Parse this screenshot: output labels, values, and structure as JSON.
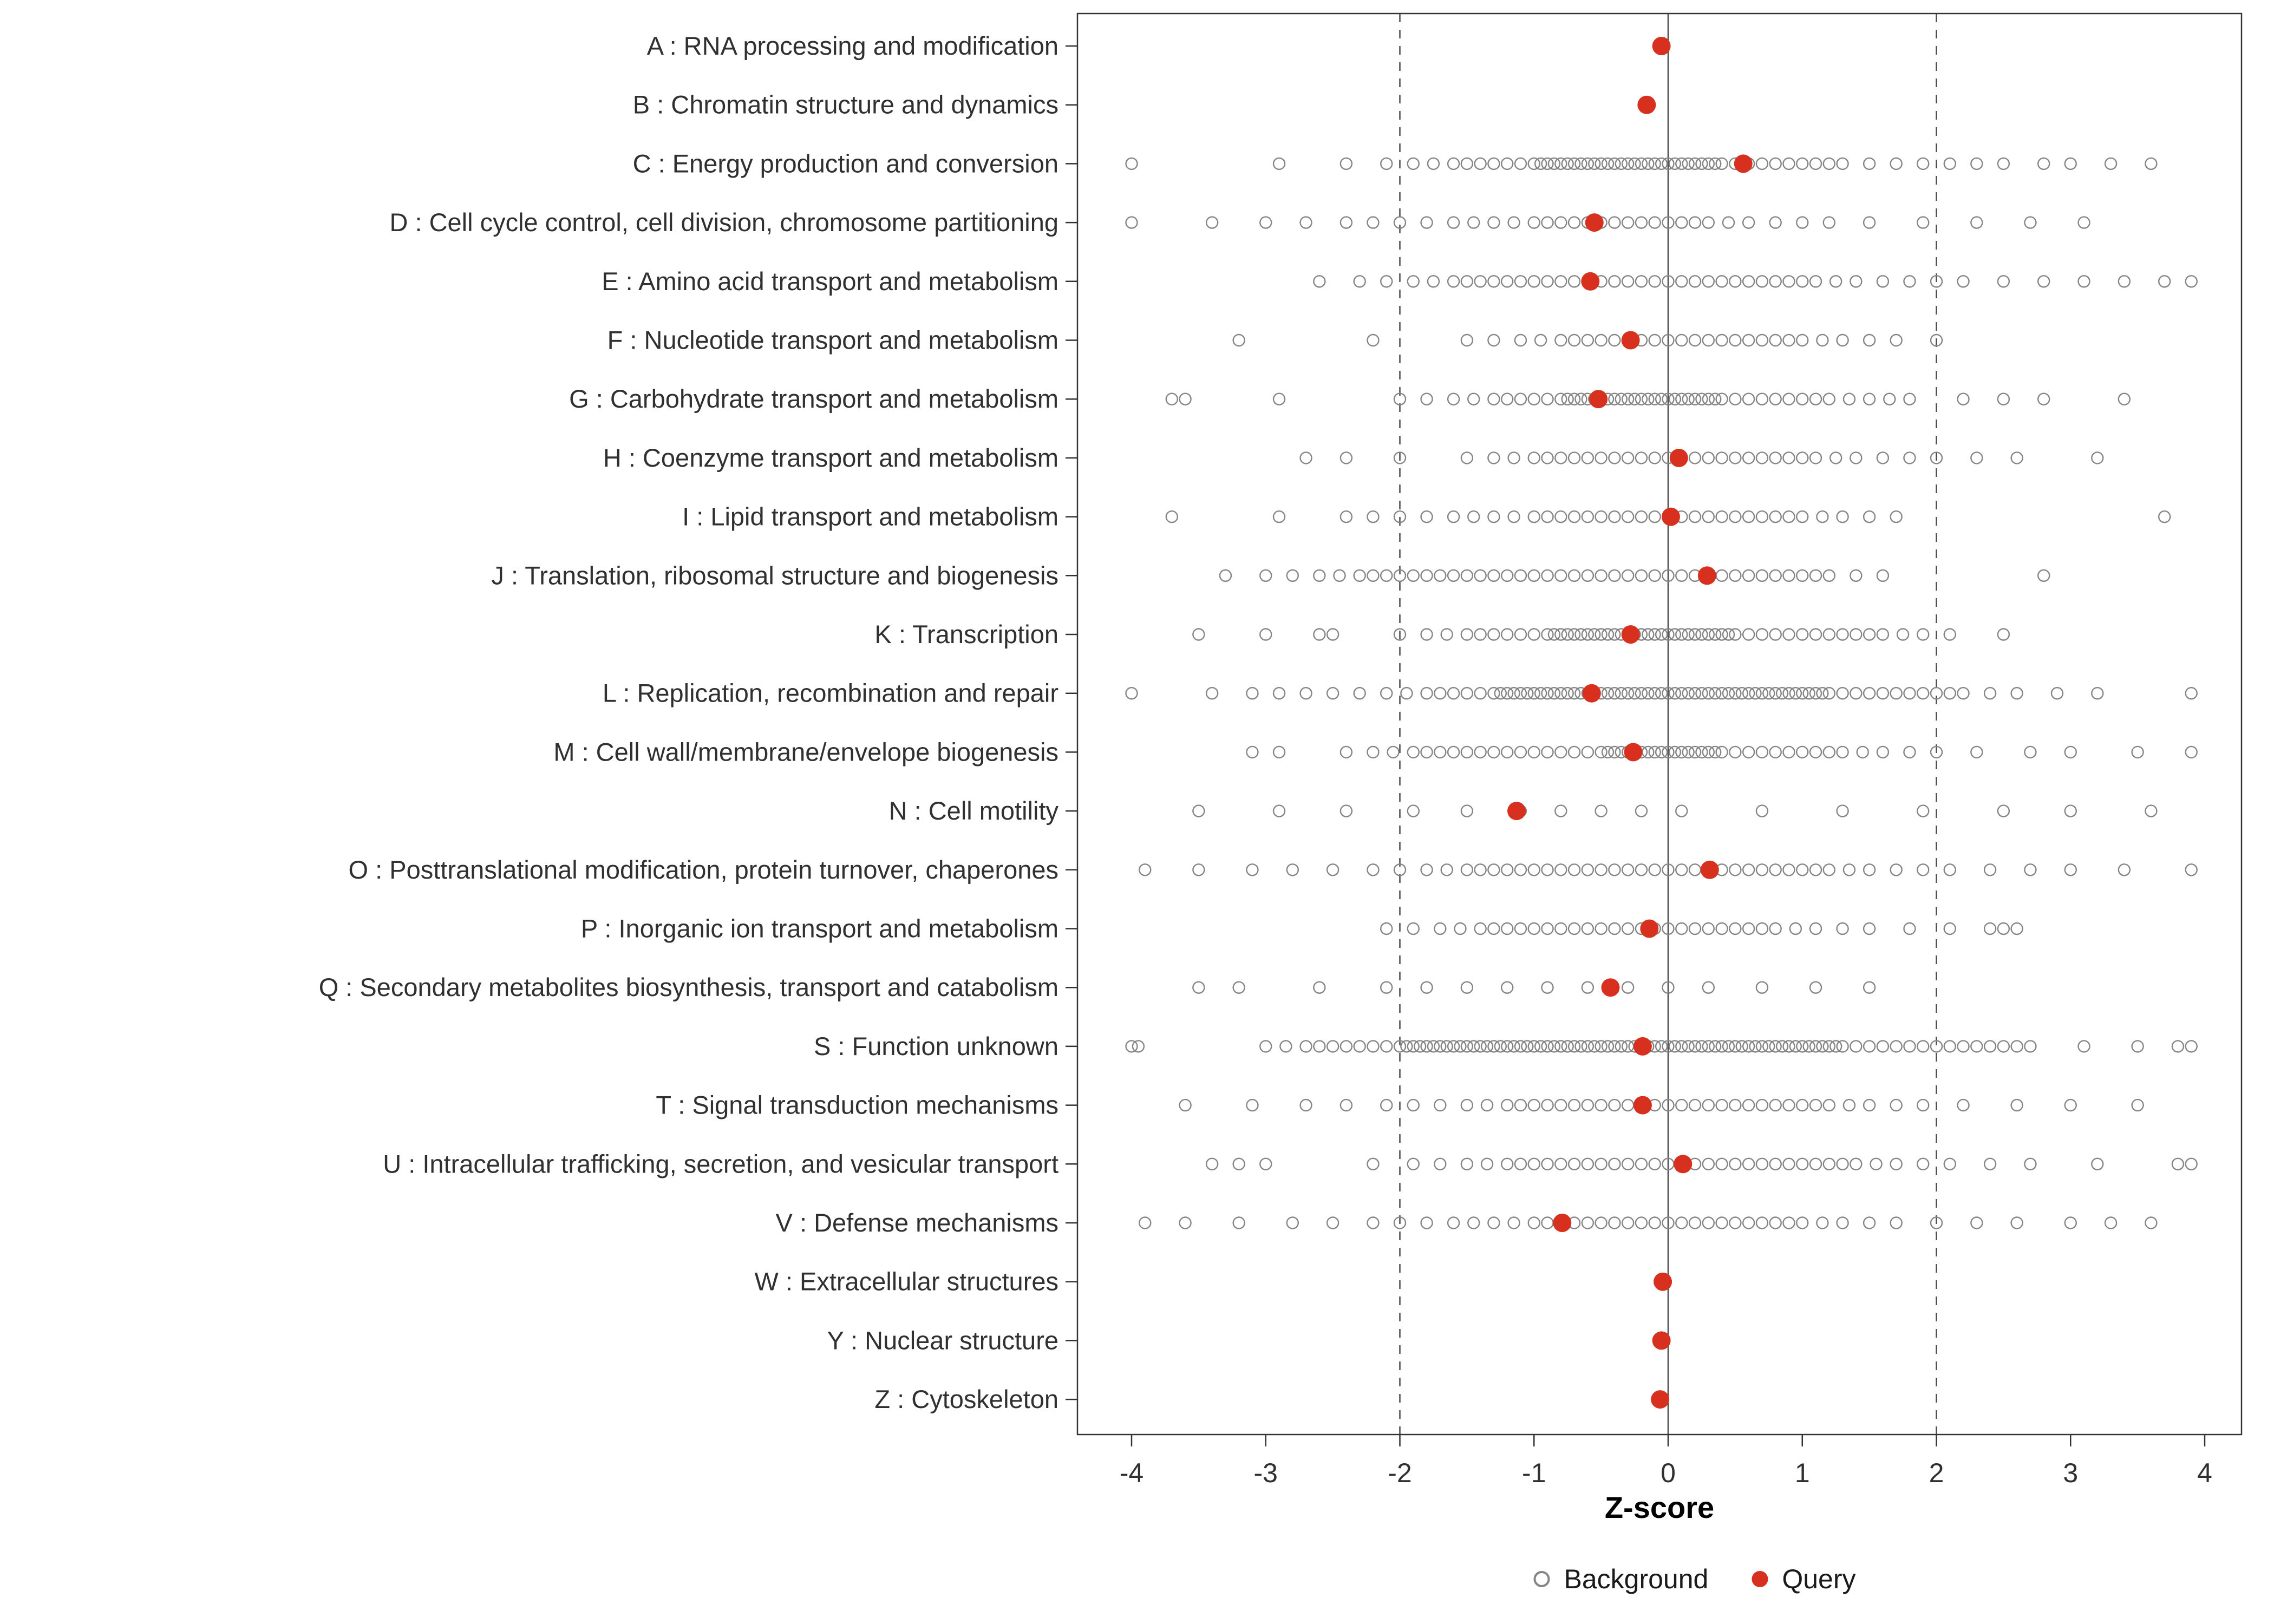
{
  "chart_data": {
    "type": "scatter",
    "title": "",
    "xlabel": "Z-score",
    "ylabel": "",
    "xlim": [
      -4.4,
      4.3
    ],
    "x_ticks": [
      -4,
      -3,
      -2,
      -1,
      0,
      1,
      2,
      3,
      4
    ],
    "reference_lines": {
      "solid": [
        0
      ],
      "dashed": [
        -2,
        2
      ]
    },
    "legend": [
      {
        "label": "Background",
        "marker": "open-circle"
      },
      {
        "label": "Query",
        "marker": "filled-circle"
      }
    ],
    "colors": {
      "query": "#D7301F",
      "background_stroke": "#858585",
      "reference_line": "#4a4a4a",
      "axis_text": "#303030",
      "panel_border": "#333333"
    },
    "categories": [
      {
        "key": "A",
        "label": "A : RNA processing and modification",
        "query": -0.05,
        "background": []
      },
      {
        "key": "B",
        "label": "B : Chromatin structure and dynamics",
        "query": -0.16,
        "background": []
      },
      {
        "key": "C",
        "label": "C : Energy production and conversion",
        "query": 0.56,
        "background": [
          -4.0,
          -2.9,
          -2.4,
          -2.1,
          -1.9,
          -1.75,
          -1.6,
          -1.5,
          -1.4,
          -1.3,
          -1.2,
          -1.1,
          -1.0,
          -0.95,
          -0.9,
          -0.85,
          -0.8,
          -0.75,
          -0.7,
          -0.65,
          -0.6,
          -0.55,
          -0.5,
          -0.45,
          -0.4,
          -0.35,
          -0.3,
          -0.25,
          -0.2,
          -0.15,
          -0.1,
          -0.05,
          0.0,
          0.05,
          0.1,
          0.15,
          0.2,
          0.25,
          0.3,
          0.35,
          0.4,
          0.5,
          0.6,
          0.7,
          0.8,
          0.9,
          1.0,
          1.1,
          1.2,
          1.3,
          1.5,
          1.7,
          1.9,
          2.1,
          2.3,
          2.5,
          2.8,
          3.0,
          3.3,
          3.6
        ]
      },
      {
        "key": "D",
        "label": "D : Cell cycle control, cell division, chromosome partitioning",
        "query": -0.55,
        "background": [
          -4.0,
          -3.4,
          -3.0,
          -2.7,
          -2.4,
          -2.2,
          -2.0,
          -1.8,
          -1.6,
          -1.45,
          -1.3,
          -1.15,
          -1.0,
          -0.9,
          -0.8,
          -0.7,
          -0.6,
          -0.5,
          -0.4,
          -0.3,
          -0.2,
          -0.1,
          0.0,
          0.1,
          0.2,
          0.3,
          0.45,
          0.6,
          0.8,
          1.0,
          1.2,
          1.5,
          1.9,
          2.3,
          2.7,
          3.1
        ]
      },
      {
        "key": "E",
        "label": "E : Amino acid transport and metabolism",
        "query": -0.58,
        "background": [
          -2.6,
          -2.3,
          -2.1,
          -1.9,
          -1.75,
          -1.6,
          -1.5,
          -1.4,
          -1.3,
          -1.2,
          -1.1,
          -1.0,
          -0.9,
          -0.8,
          -0.7,
          -0.6,
          -0.5,
          -0.4,
          -0.3,
          -0.2,
          -0.1,
          0.0,
          0.1,
          0.2,
          0.3,
          0.4,
          0.5,
          0.6,
          0.7,
          0.8,
          0.9,
          1.0,
          1.1,
          1.25,
          1.4,
          1.6,
          1.8,
          2.0,
          2.2,
          2.5,
          2.8,
          3.1,
          3.4,
          3.7,
          3.9
        ]
      },
      {
        "key": "F",
        "label": "F : Nucleotide transport and metabolism",
        "query": -0.28,
        "background": [
          -3.2,
          -2.2,
          -1.5,
          -1.3,
          -1.1,
          -0.95,
          -0.8,
          -0.7,
          -0.6,
          -0.5,
          -0.4,
          -0.3,
          -0.2,
          -0.1,
          0.0,
          0.1,
          0.2,
          0.3,
          0.4,
          0.5,
          0.6,
          0.7,
          0.8,
          0.9,
          1.0,
          1.15,
          1.3,
          1.5,
          1.7,
          2.0
        ]
      },
      {
        "key": "G",
        "label": "G : Carbohydrate transport and metabolism",
        "query": -0.52,
        "background": [
          -3.7,
          -3.6,
          -2.9,
          -2.0,
          -1.8,
          -1.6,
          -1.45,
          -1.3,
          -1.2,
          -1.1,
          -1.0,
          -0.9,
          -0.8,
          -0.75,
          -0.7,
          -0.65,
          -0.6,
          -0.55,
          -0.5,
          -0.45,
          -0.4,
          -0.35,
          -0.3,
          -0.25,
          -0.2,
          -0.15,
          -0.1,
          -0.05,
          0.0,
          0.05,
          0.1,
          0.15,
          0.2,
          0.25,
          0.3,
          0.35,
          0.4,
          0.5,
          0.6,
          0.7,
          0.8,
          0.9,
          1.0,
          1.1,
          1.2,
          1.35,
          1.5,
          1.65,
          1.8,
          2.2,
          2.5,
          2.8,
          3.4
        ]
      },
      {
        "key": "H",
        "label": "H : Coenzyme transport and metabolism",
        "query": 0.08,
        "background": [
          -2.7,
          -2.4,
          -2.0,
          -1.5,
          -1.3,
          -1.15,
          -1.0,
          -0.9,
          -0.8,
          -0.7,
          -0.6,
          -0.5,
          -0.4,
          -0.3,
          -0.2,
          -0.1,
          0.0,
          0.1,
          0.2,
          0.3,
          0.4,
          0.5,
          0.6,
          0.7,
          0.8,
          0.9,
          1.0,
          1.1,
          1.25,
          1.4,
          1.6,
          1.8,
          2.0,
          2.3,
          2.6,
          3.2
        ]
      },
      {
        "key": "I",
        "label": "I : Lipid transport and metabolism",
        "query": 0.02,
        "background": [
          -3.7,
          -2.9,
          -2.4,
          -2.2,
          -2.0,
          -1.8,
          -1.6,
          -1.45,
          -1.3,
          -1.15,
          -1.0,
          -0.9,
          -0.8,
          -0.7,
          -0.6,
          -0.5,
          -0.4,
          -0.3,
          -0.2,
          -0.1,
          0.0,
          0.1,
          0.2,
          0.3,
          0.4,
          0.5,
          0.6,
          0.7,
          0.8,
          0.9,
          1.0,
          1.15,
          1.3,
          1.5,
          1.7,
          3.7
        ]
      },
      {
        "key": "J",
        "label": "J : Translation, ribosomal structure and biogenesis",
        "query": 0.29,
        "background": [
          -3.3,
          -3.0,
          -2.8,
          -2.6,
          -2.45,
          -2.3,
          -2.2,
          -2.1,
          -2.0,
          -1.9,
          -1.8,
          -1.7,
          -1.6,
          -1.5,
          -1.4,
          -1.3,
          -1.2,
          -1.1,
          -1.0,
          -0.9,
          -0.8,
          -0.7,
          -0.6,
          -0.5,
          -0.4,
          -0.3,
          -0.2,
          -0.1,
          0.0,
          0.1,
          0.2,
          0.3,
          0.4,
          0.5,
          0.6,
          0.7,
          0.8,
          0.9,
          1.0,
          1.1,
          1.2,
          1.4,
          1.6,
          2.8
        ]
      },
      {
        "key": "K",
        "label": "K : Transcription",
        "query": -0.28,
        "background": [
          -3.5,
          -3.0,
          -2.6,
          -2.5,
          -2.0,
          -1.8,
          -1.65,
          -1.5,
          -1.4,
          -1.3,
          -1.2,
          -1.1,
          -1.0,
          -0.9,
          -0.85,
          -0.8,
          -0.75,
          -0.7,
          -0.65,
          -0.6,
          -0.55,
          -0.5,
          -0.45,
          -0.4,
          -0.35,
          -0.3,
          -0.25,
          -0.2,
          -0.15,
          -0.1,
          -0.05,
          0.0,
          0.05,
          0.1,
          0.15,
          0.2,
          0.25,
          0.3,
          0.35,
          0.4,
          0.45,
          0.5,
          0.6,
          0.7,
          0.8,
          0.9,
          1.0,
          1.1,
          1.2,
          1.3,
          1.4,
          1.5,
          1.6,
          1.75,
          1.9,
          2.1,
          2.5
        ]
      },
      {
        "key": "L",
        "label": "L : Replication, recombination and repair",
        "query": -0.57,
        "background": [
          -4.0,
          -3.4,
          -3.1,
          -2.9,
          -2.7,
          -2.5,
          -2.3,
          -2.1,
          -1.95,
          -1.8,
          -1.7,
          -1.6,
          -1.5,
          -1.4,
          -1.3,
          -1.25,
          -1.2,
          -1.15,
          -1.1,
          -1.05,
          -1.0,
          -0.95,
          -0.9,
          -0.85,
          -0.8,
          -0.75,
          -0.7,
          -0.65,
          -0.6,
          -0.55,
          -0.5,
          -0.45,
          -0.4,
          -0.35,
          -0.3,
          -0.25,
          -0.2,
          -0.15,
          -0.1,
          -0.05,
          0.0,
          0.05,
          0.1,
          0.15,
          0.2,
          0.25,
          0.3,
          0.35,
          0.4,
          0.45,
          0.5,
          0.55,
          0.6,
          0.65,
          0.7,
          0.75,
          0.8,
          0.85,
          0.9,
          0.95,
          1.0,
          1.05,
          1.1,
          1.15,
          1.2,
          1.3,
          1.4,
          1.5,
          1.6,
          1.7,
          1.8,
          1.9,
          2.0,
          2.1,
          2.2,
          2.4,
          2.6,
          2.9,
          3.2,
          3.9
        ]
      },
      {
        "key": "M",
        "label": "M : Cell wall/membrane/envelope biogenesis",
        "query": -0.26,
        "background": [
          -3.1,
          -2.9,
          -2.4,
          -2.2,
          -2.05,
          -1.9,
          -1.8,
          -1.7,
          -1.6,
          -1.5,
          -1.4,
          -1.3,
          -1.2,
          -1.1,
          -1.0,
          -0.9,
          -0.8,
          -0.7,
          -0.6,
          -0.5,
          -0.45,
          -0.4,
          -0.35,
          -0.3,
          -0.25,
          -0.2,
          -0.15,
          -0.1,
          -0.05,
          0.0,
          0.05,
          0.1,
          0.15,
          0.2,
          0.25,
          0.3,
          0.35,
          0.4,
          0.5,
          0.6,
          0.7,
          0.8,
          0.9,
          1.0,
          1.1,
          1.2,
          1.3,
          1.45,
          1.6,
          1.8,
          2.0,
          2.3,
          2.7,
          3.0,
          3.5,
          3.9
        ]
      },
      {
        "key": "N",
        "label": "N : Cell motility",
        "query": -1.13,
        "background": [
          -3.5,
          -2.9,
          -2.4,
          -1.9,
          -1.5,
          -1.1,
          -0.8,
          -0.5,
          -0.2,
          0.1,
          0.7,
          1.3,
          1.9,
          2.5,
          3.0,
          3.6
        ]
      },
      {
        "key": "O",
        "label": "O : Posttranslational modification, protein turnover, chaperones",
        "query": 0.31,
        "background": [
          -3.9,
          -3.5,
          -3.1,
          -2.8,
          -2.5,
          -2.2,
          -2.0,
          -1.8,
          -1.65,
          -1.5,
          -1.4,
          -1.3,
          -1.2,
          -1.1,
          -1.0,
          -0.9,
          -0.8,
          -0.7,
          -0.6,
          -0.5,
          -0.4,
          -0.3,
          -0.2,
          -0.1,
          0.0,
          0.1,
          0.2,
          0.3,
          0.4,
          0.5,
          0.6,
          0.7,
          0.8,
          0.9,
          1.0,
          1.1,
          1.2,
          1.35,
          1.5,
          1.7,
          1.9,
          2.1,
          2.4,
          2.7,
          3.0,
          3.4,
          3.9
        ]
      },
      {
        "key": "P",
        "label": "P : Inorganic ion transport and metabolism",
        "query": -0.14,
        "background": [
          -2.1,
          -1.9,
          -1.7,
          -1.55,
          -1.4,
          -1.3,
          -1.2,
          -1.1,
          -1.0,
          -0.9,
          -0.8,
          -0.7,
          -0.6,
          -0.5,
          -0.4,
          -0.3,
          -0.2,
          -0.1,
          0.0,
          0.1,
          0.2,
          0.3,
          0.4,
          0.5,
          0.6,
          0.7,
          0.8,
          0.95,
          1.1,
          1.3,
          1.5,
          1.8,
          2.1,
          2.4,
          2.5,
          2.6
        ]
      },
      {
        "key": "Q",
        "label": "Q : Secondary metabolites biosynthesis, transport and catabolism",
        "query": -0.43,
        "background": [
          -3.5,
          -3.2,
          -2.6,
          -2.1,
          -1.8,
          -1.5,
          -1.2,
          -0.9,
          -0.6,
          -0.3,
          0.0,
          0.3,
          0.7,
          1.1,
          1.5
        ]
      },
      {
        "key": "S",
        "label": "S : Function unknown",
        "query": -0.19,
        "background": [
          -4.0,
          -3.95,
          -3.0,
          -2.85,
          -2.7,
          -2.6,
          -2.5,
          -2.4,
          -2.3,
          -2.2,
          -2.1,
          -2.0,
          -1.95,
          -1.9,
          -1.85,
          -1.8,
          -1.75,
          -1.7,
          -1.65,
          -1.6,
          -1.55,
          -1.5,
          -1.45,
          -1.4,
          -1.35,
          -1.3,
          -1.25,
          -1.2,
          -1.15,
          -1.1,
          -1.05,
          -1.0,
          -0.95,
          -0.9,
          -0.85,
          -0.8,
          -0.75,
          -0.7,
          -0.65,
          -0.6,
          -0.55,
          -0.5,
          -0.45,
          -0.4,
          -0.35,
          -0.3,
          -0.25,
          -0.2,
          -0.15,
          -0.1,
          -0.05,
          0.0,
          0.05,
          0.1,
          0.15,
          0.2,
          0.25,
          0.3,
          0.35,
          0.4,
          0.45,
          0.5,
          0.55,
          0.6,
          0.65,
          0.7,
          0.75,
          0.8,
          0.85,
          0.9,
          0.95,
          1.0,
          1.05,
          1.1,
          1.15,
          1.2,
          1.25,
          1.3,
          1.4,
          1.5,
          1.6,
          1.7,
          1.8,
          1.9,
          2.0,
          2.1,
          2.2,
          2.3,
          2.4,
          2.5,
          2.6,
          2.7,
          3.1,
          3.5,
          3.8,
          3.9
        ]
      },
      {
        "key": "T",
        "label": "T : Signal transduction mechanisms",
        "query": -0.19,
        "background": [
          -3.6,
          -3.1,
          -2.7,
          -2.4,
          -2.1,
          -1.9,
          -1.7,
          -1.5,
          -1.35,
          -1.2,
          -1.1,
          -1.0,
          -0.9,
          -0.8,
          -0.7,
          -0.6,
          -0.5,
          -0.4,
          -0.3,
          -0.2,
          -0.1,
          0.0,
          0.1,
          0.2,
          0.3,
          0.4,
          0.5,
          0.6,
          0.7,
          0.8,
          0.9,
          1.0,
          1.1,
          1.2,
          1.35,
          1.5,
          1.7,
          1.9,
          2.2,
          2.6,
          3.0,
          3.5
        ]
      },
      {
        "key": "U",
        "label": "U : Intracellular trafficking, secretion, and vesicular transport",
        "query": 0.11,
        "background": [
          -3.4,
          -3.2,
          -3.0,
          -2.2,
          -1.9,
          -1.7,
          -1.5,
          -1.35,
          -1.2,
          -1.1,
          -1.0,
          -0.9,
          -0.8,
          -0.7,
          -0.6,
          -0.5,
          -0.4,
          -0.3,
          -0.2,
          -0.1,
          0.0,
          0.1,
          0.2,
          0.3,
          0.4,
          0.5,
          0.6,
          0.7,
          0.8,
          0.9,
          1.0,
          1.1,
          1.2,
          1.3,
          1.4,
          1.55,
          1.7,
          1.9,
          2.1,
          2.4,
          2.7,
          3.2,
          3.8,
          3.9
        ]
      },
      {
        "key": "V",
        "label": "V : Defense mechanisms",
        "query": -0.79,
        "background": [
          -3.9,
          -3.6,
          -3.2,
          -2.8,
          -2.5,
          -2.2,
          -2.0,
          -1.8,
          -1.6,
          -1.45,
          -1.3,
          -1.15,
          -1.0,
          -0.9,
          -0.8,
          -0.7,
          -0.6,
          -0.5,
          -0.4,
          -0.3,
          -0.2,
          -0.1,
          0.0,
          0.1,
          0.2,
          0.3,
          0.4,
          0.5,
          0.6,
          0.7,
          0.8,
          0.9,
          1.0,
          1.15,
          1.3,
          1.5,
          1.7,
          2.0,
          2.3,
          2.6,
          3.0,
          3.3,
          3.6
        ]
      },
      {
        "key": "W",
        "label": "W : Extracellular structures",
        "query": -0.04,
        "background": []
      },
      {
        "key": "Y",
        "label": "Y : Nuclear structure",
        "query": -0.05,
        "background": []
      },
      {
        "key": "Z",
        "label": "Z : Cytoskeleton",
        "query": -0.06,
        "background": []
      }
    ]
  }
}
